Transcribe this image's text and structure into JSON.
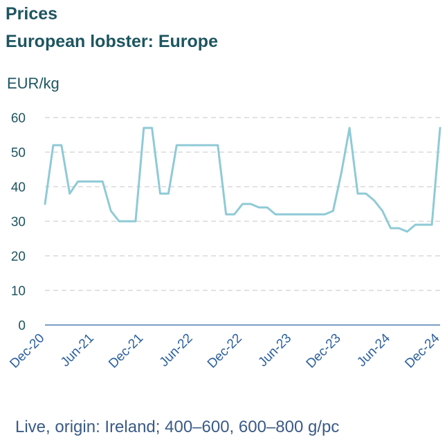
{
  "header": {
    "title": "Prices",
    "subtitle": "European lobster: Europe",
    "unit": "EUR/kg"
  },
  "footnote": "Live, origin: Ireland; 400–600, 600–800 g/pc",
  "colors": {
    "line": "#8ecad6",
    "grid": "#d9d9d9",
    "axis": "#4a7fb0",
    "title": "#1d5560"
  },
  "chart_data": {
    "type": "line",
    "title": "European lobster: Europe",
    "ylabel": "EUR/kg",
    "xlabel": "",
    "ylim": [
      0,
      60
    ],
    "yticks": [
      0,
      10,
      20,
      30,
      40,
      50,
      60
    ],
    "grid": true,
    "xtick_labels": [
      "Dec-20",
      "Jun-21",
      "Dec-21",
      "Jun-22",
      "Dec-22",
      "Jun-23",
      "Dec-23",
      "Jun-24",
      "Dec-24"
    ],
    "x": [
      "Dec-20",
      "Jan-21",
      "Feb-21",
      "Mar-21",
      "Apr-21",
      "May-21",
      "Jun-21",
      "Jul-21",
      "Aug-21",
      "Sep-21",
      "Oct-21",
      "Nov-21",
      "Dec-21",
      "Jan-22",
      "Feb-22",
      "Mar-22",
      "Apr-22",
      "May-22",
      "Jun-22",
      "Jul-22",
      "Aug-22",
      "Sep-22",
      "Oct-22",
      "Nov-22",
      "Dec-22",
      "Jan-23",
      "Feb-23",
      "Mar-23",
      "Apr-23",
      "May-23",
      "Jun-23",
      "Jul-23",
      "Aug-23",
      "Sep-23",
      "Oct-23",
      "Nov-23",
      "Dec-23",
      "Jan-24",
      "Feb-24",
      "Mar-24",
      "Apr-24",
      "May-24",
      "Jun-24",
      "Jul-24",
      "Aug-24",
      "Sep-24",
      "Oct-24",
      "Nov-24",
      "Dec-24"
    ],
    "series": [
      {
        "values": [
          35,
          52,
          52,
          38,
          41.5,
          41.5,
          41.5,
          41.5,
          33,
          30,
          30,
          30,
          57,
          57,
          38,
          38,
          52,
          52,
          52,
          52,
          52,
          52,
          32,
          32,
          35,
          35,
          34,
          34,
          32,
          32,
          32,
          32,
          32,
          32,
          32,
          33,
          44,
          57,
          38,
          38,
          36,
          33,
          28,
          28,
          27,
          29,
          29,
          29,
          57
        ]
      }
    ]
  }
}
